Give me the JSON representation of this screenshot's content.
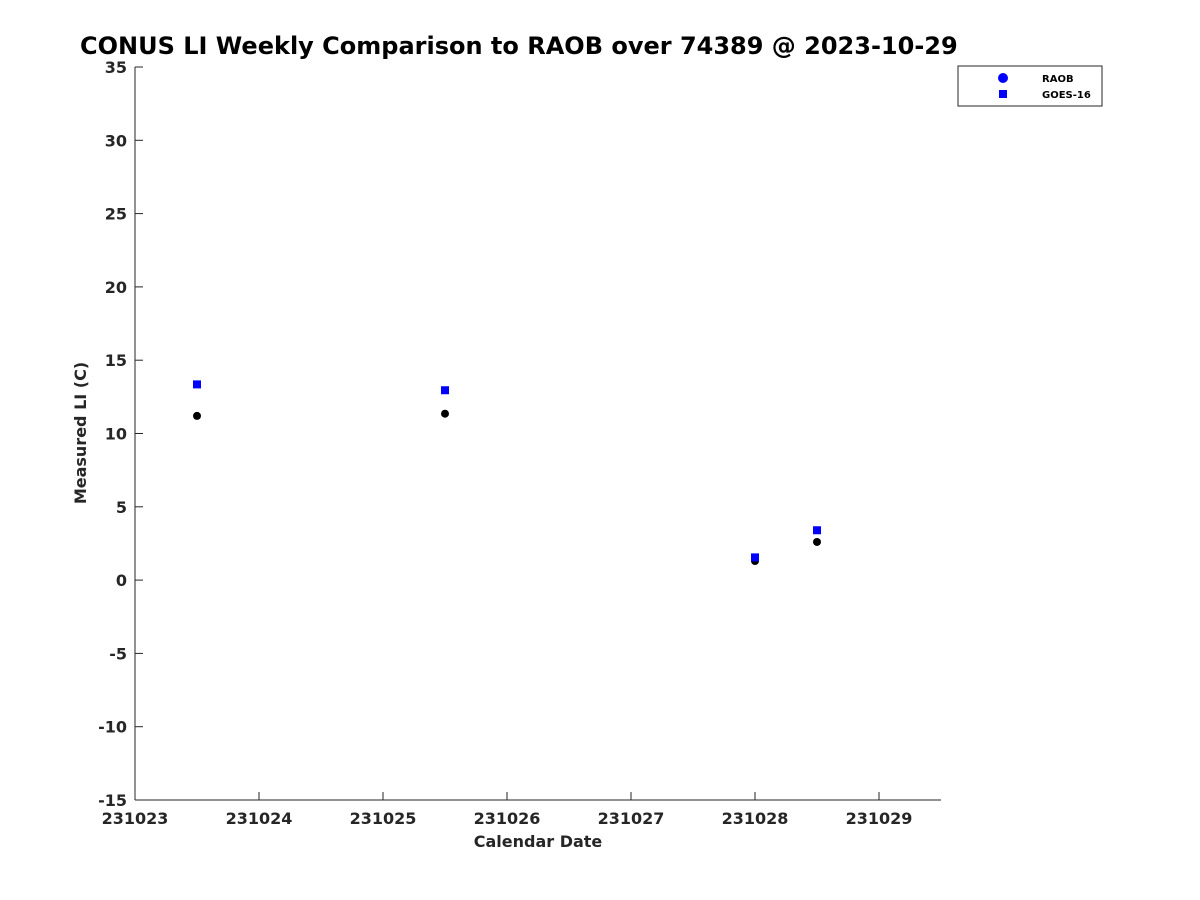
{
  "chart_data": {
    "type": "scatter",
    "title": "CONUS LI Weekly Comparison to RAOB over 74389 @ 2023-10-29",
    "xlabel": "Calendar Date",
    "ylabel": "Measured LI (C)",
    "x_tick_labels": [
      "231023",
      "231024",
      "231025",
      "231026",
      "231027",
      "231028",
      "231029"
    ],
    "xlim": [
      "2023-10-23",
      "2023-10-29T12:00"
    ],
    "y_ticks": [
      35,
      30,
      25,
      20,
      15,
      10,
      5,
      0,
      -5,
      -10,
      -15
    ],
    "ylim": [
      -15,
      35
    ],
    "grid": false,
    "legend_position": "top-right",
    "series": [
      {
        "name": "RAOB",
        "marker": "circle",
        "color": "#000000",
        "legend_color": "#0000ff",
        "x": [
          "2023-10-23T12:00",
          "2023-10-25T12:00",
          "2023-10-28T00:00",
          "2023-10-28T12:00"
        ],
        "y": [
          11.2,
          11.35,
          1.3,
          2.6
        ]
      },
      {
        "name": "GOES-16",
        "marker": "square",
        "color": "#0000ff",
        "legend_color": "#0000ff",
        "x": [
          "2023-10-23T12:00",
          "2023-10-25T12:00",
          "2023-10-28T00:00",
          "2023-10-28T12:00"
        ],
        "y": [
          13.35,
          12.95,
          1.55,
          3.4
        ]
      }
    ]
  }
}
